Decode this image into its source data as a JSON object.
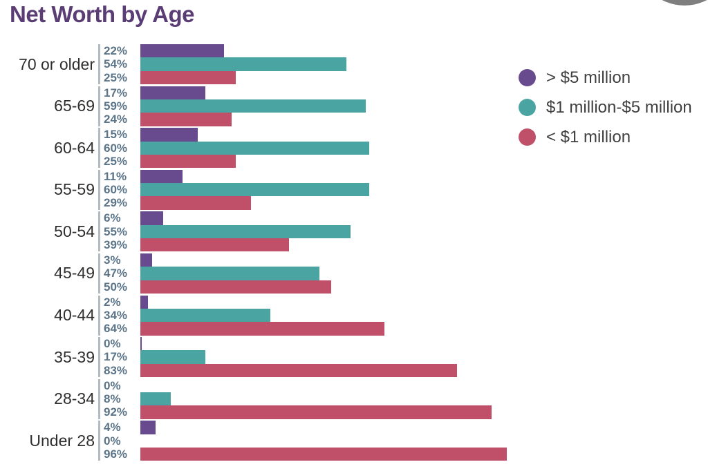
{
  "title": "Net Worth by Age",
  "colors": {
    "title_text": "#5a3d75",
    "purple_series": "#684a8e",
    "teal_series": "#4aa4a2",
    "crimson_series": "#c0506a",
    "pct_label_text": "#5b7488",
    "age_label_text": "#2f2f2f",
    "axis_tick_line": "#b3bac0",
    "corner_circle": "#7f7f7f",
    "background": "#ffffff"
  },
  "legend": {
    "position": "right",
    "items": [
      {
        "label": "> $5 million",
        "color": "#684a8e"
      },
      {
        "label": "$1 million-$5 million",
        "color": "#4aa4a2"
      },
      {
        "label": "< $1 million",
        "color": "#c0506a"
      }
    ]
  },
  "chart_data": {
    "type": "bar",
    "orientation": "horizontal",
    "title": "Net Worth by Age",
    "categories": [
      "70 or older",
      "65-69",
      "60-64",
      "55-59",
      "50-54",
      "45-49",
      "40-44",
      "35-39",
      "28-34",
      "Under 28"
    ],
    "series": [
      {
        "name": "> $5 million",
        "color": "#684a8e",
        "values": [
          22,
          17,
          15,
          11,
          6,
          3,
          2,
          0,
          0,
          4
        ],
        "zero_sliver_categories": [
          "35-39"
        ]
      },
      {
        "name": "$1 million-$5 million",
        "color": "#4aa4a2",
        "values": [
          54,
          59,
          60,
          60,
          55,
          47,
          34,
          17,
          8,
          0
        ],
        "zero_sliver_categories": []
      },
      {
        "name": "< $1 million",
        "color": "#c0506a",
        "values": [
          25,
          24,
          25,
          29,
          39,
          50,
          64,
          83,
          92,
          96
        ],
        "zero_sliver_categories": []
      }
    ],
    "value_suffix": "%",
    "data_labels": true,
    "xlim": [
      0,
      100
    ],
    "grid": false,
    "legend_position": "right"
  }
}
